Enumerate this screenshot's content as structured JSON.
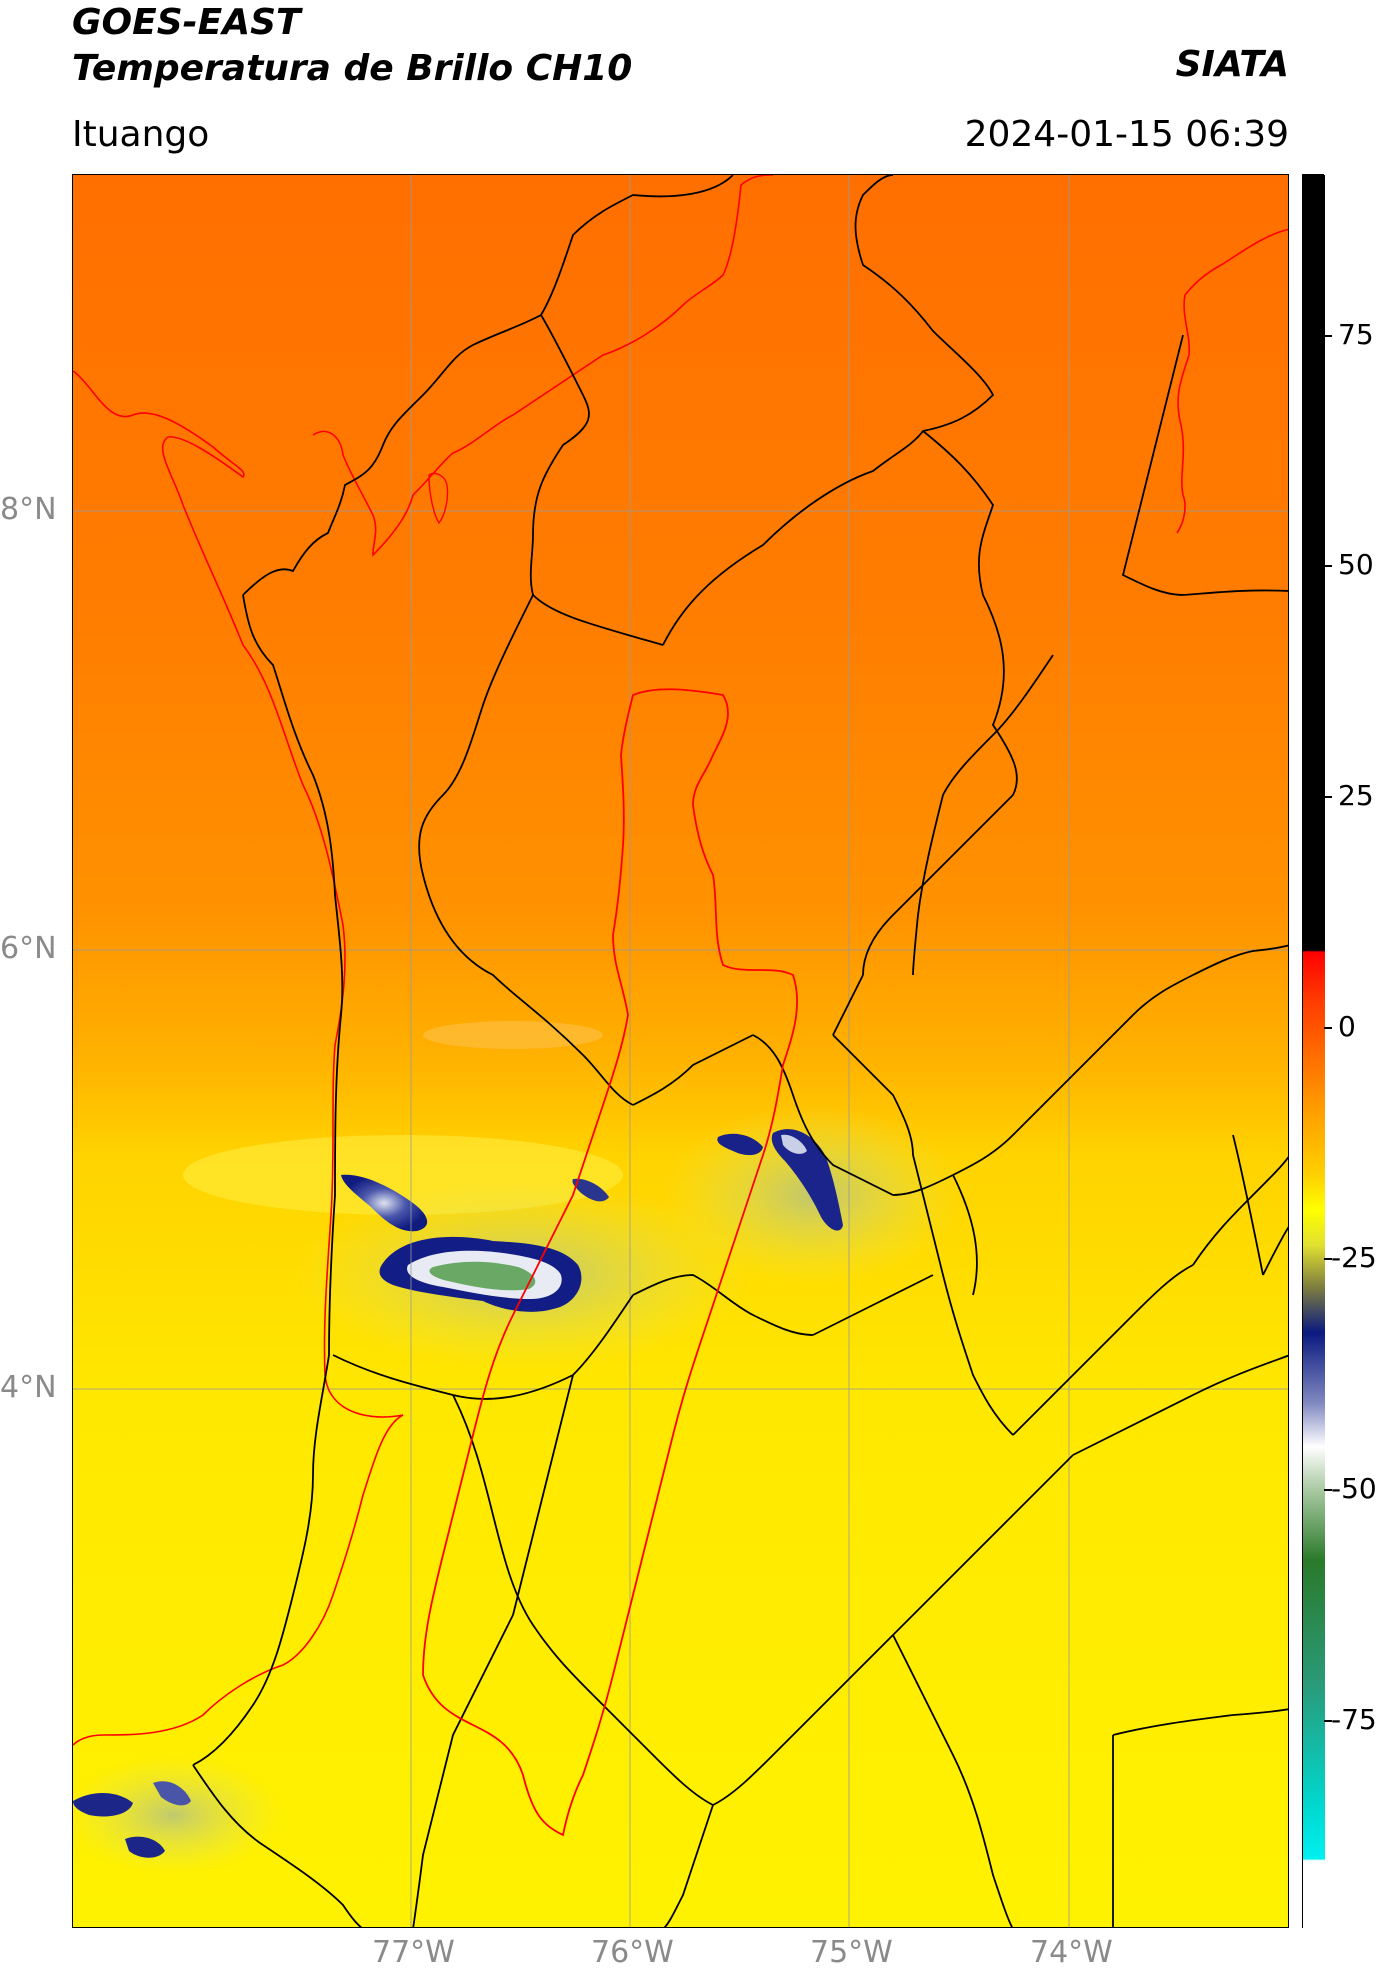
{
  "header": {
    "title_line1": "GOES-EAST",
    "title_line2": "Temperatura de Brillo CH10",
    "organization": "SIATA",
    "location": "Ituango",
    "datetime": "2024-01-15 06:39"
  },
  "map": {
    "latitude_labels": [
      "8°N",
      "6°N",
      "4°N"
    ],
    "longitude_labels": [
      "77°W",
      "76°W",
      "75°W",
      "74°W"
    ],
    "gridlines": true,
    "colors": {
      "warm_north": "#ff7300",
      "mid": "#ff9a00",
      "south": "#ffe100",
      "borders": "#000000",
      "basin_outline": "#ff0000",
      "gridline": "#9a9a9a"
    },
    "cloud_features": [
      "cold-cloud-cluster-central",
      "cold-cloud-cluster-east",
      "cold-cloud-cluster-southwest"
    ]
  },
  "colorbar": {
    "tick_labels": [
      "75",
      "50",
      "25",
      "0",
      "-25",
      "-50",
      "-75"
    ],
    "colors": {
      "top": "#000000",
      "red": "#ff0000",
      "orange": "#ff9900",
      "yellow": "#ffff00",
      "olive": "#8a8a2a",
      "navy": "#0a1a80",
      "white": "#ffffff",
      "green": "#2a7a2a",
      "cyan": "#00e5e5"
    }
  }
}
